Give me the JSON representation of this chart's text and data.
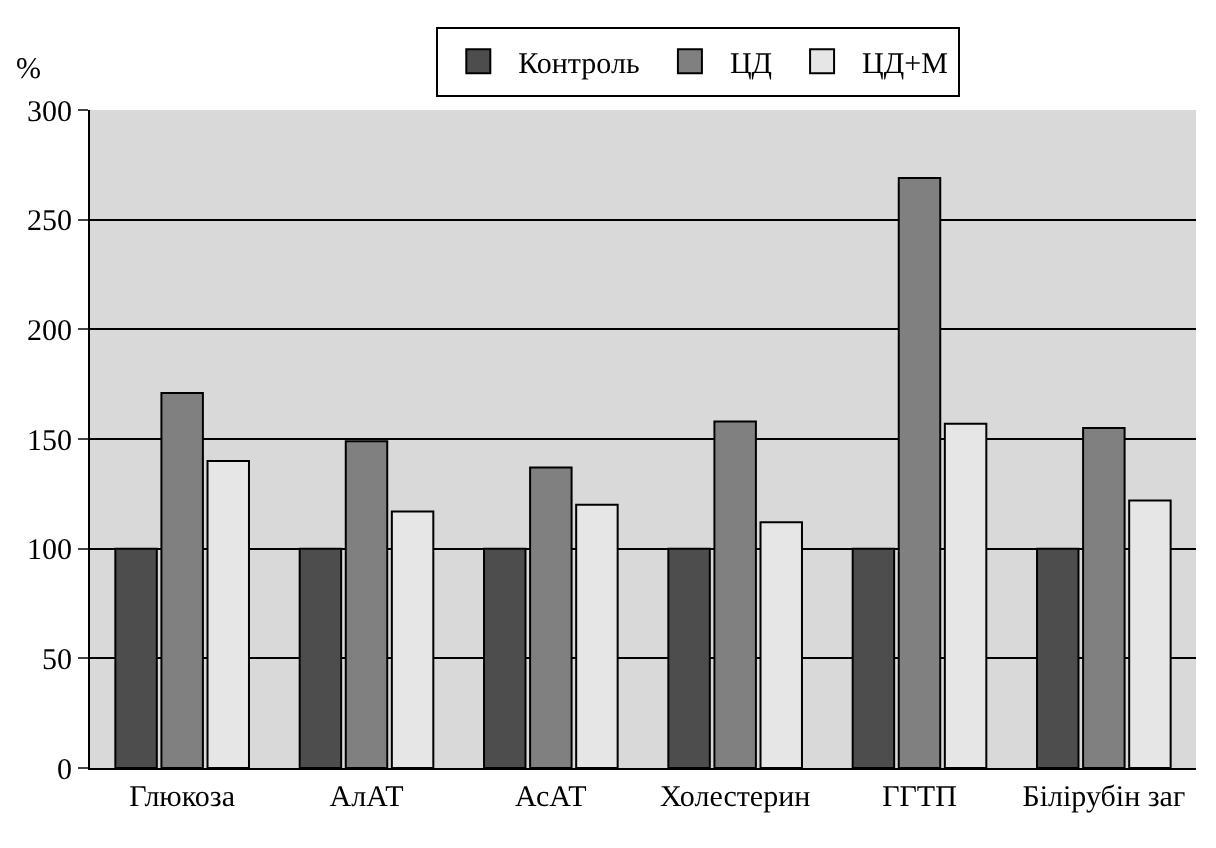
{
  "chart_data": {
    "type": "bar",
    "ylabel": "%",
    "categories": [
      "Глюкоза",
      "АлАТ",
      "АсАТ",
      "Холестерин",
      "ГГТП",
      "Білірубін заг"
    ],
    "series": [
      {
        "name": "Контроль",
        "color": "#4d4d4d",
        "values": [
          100,
          100,
          100,
          100,
          100,
          100
        ]
      },
      {
        "name": "ЦД",
        "color": "#808080",
        "values": [
          171,
          149,
          137,
          158,
          269,
          155
        ]
      },
      {
        "name": "ЦД+М",
        "color": "#e6e6e6",
        "values": [
          140,
          117,
          120,
          112,
          157,
          122
        ]
      }
    ],
    "ylim": [
      0,
      300
    ],
    "yticks": [
      0,
      50,
      100,
      150,
      200,
      250,
      300
    ],
    "grid": "y",
    "legend": "top"
  }
}
